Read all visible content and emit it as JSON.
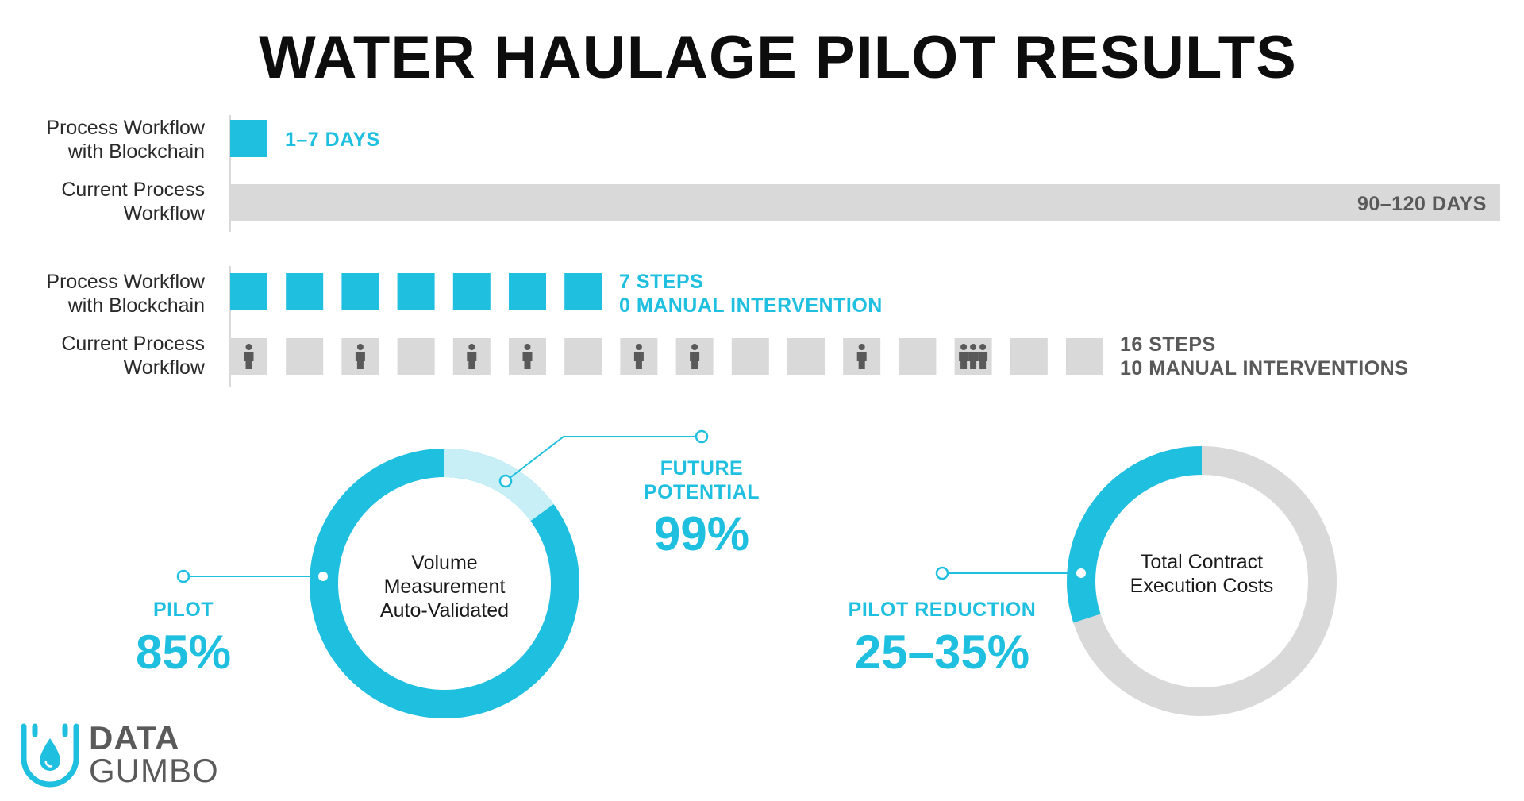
{
  "title": "WATER HAULAGE PILOT RESULTS",
  "colors": {
    "teal": "#1fbfdf",
    "teal_light": "#c8eef6",
    "gray_block": "#d9d9da",
    "gray_text": "#595959",
    "person_icon": "#595959"
  },
  "time_comparison": {
    "blockchain": {
      "label_line1": "Process Workflow",
      "label_line2": "with Blockchain",
      "value": "1–7 DAYS"
    },
    "current": {
      "label_line1": "Current Process",
      "label_line2": "Workflow",
      "value": "90–120 DAYS"
    }
  },
  "step_comparison": {
    "blockchain": {
      "label_line1": "Process Workflow",
      "label_line2": "with Blockchain",
      "steps_count": 7,
      "value_line1": "7 STEPS",
      "value_line2": "0 MANUAL INTERVENTION"
    },
    "current": {
      "label_line1": "Current Process",
      "label_line2": "Workflow",
      "value_line1": "16 STEPS",
      "value_line2": "10 MANUAL INTERVENTIONS",
      "step_people": [
        1,
        0,
        1,
        0,
        1,
        1,
        0,
        1,
        1,
        0,
        0,
        1,
        0,
        3,
        0,
        0
      ],
      "person_icon": "person-icon"
    }
  },
  "volume_donut": {
    "center_line1": "Volume",
    "center_line2": "Measurement",
    "center_line3": "Auto-Validated",
    "pilot_percent": 85,
    "future_percent": 99,
    "pilot_label": "PILOT",
    "pilot_value": "85%",
    "future_label_line1": "FUTURE",
    "future_label_line2": "POTENTIAL",
    "future_value": "99%"
  },
  "cost_donut": {
    "center_line1": "Total Contract",
    "center_line2": "Execution Costs",
    "reduction_percent": 30,
    "label": "PILOT REDUCTION",
    "value": "25–35%"
  },
  "logo": {
    "line1": "DATA",
    "line2": "GUMBO",
    "icon": "water-drop-logo-icon"
  }
}
